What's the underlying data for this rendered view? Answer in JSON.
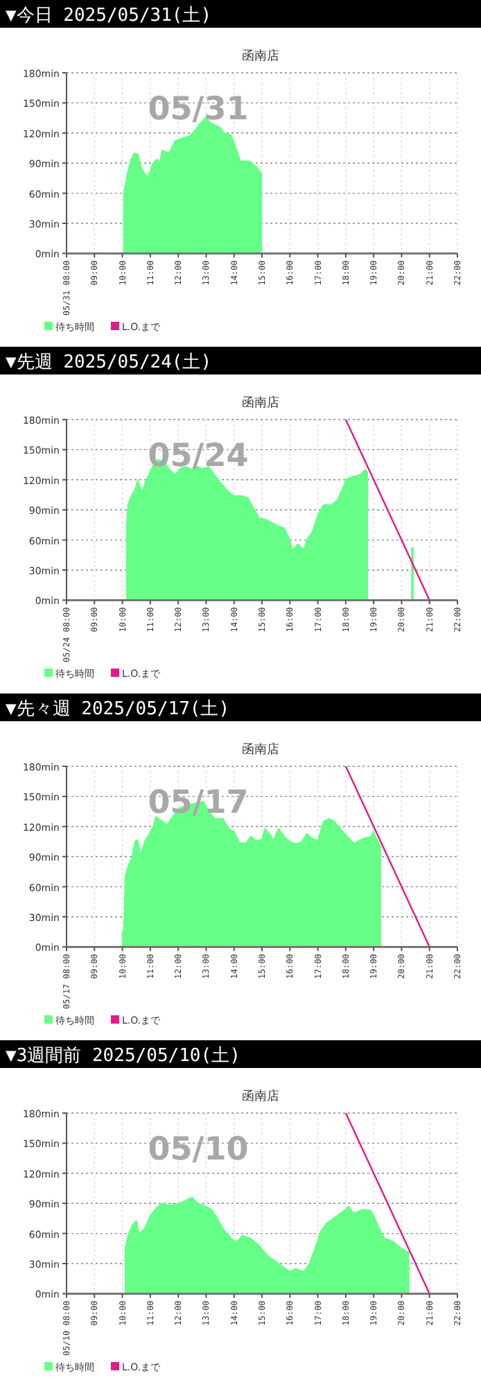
{
  "chart_data": [
    {
      "type": "area",
      "title": "▼今日 2025/05/31(土)",
      "subtitle": "函南店",
      "annotations": [
        "05/31"
      ],
      "xlim": [
        8,
        22
      ],
      "xticks": [
        {
          "value": 8,
          "label": "05/31 08:00"
        },
        {
          "value": 9,
          "label": "09:00"
        },
        {
          "value": 10,
          "label": "10:00"
        },
        {
          "value": 11,
          "label": "11:00"
        },
        {
          "value": 12,
          "label": "12:00"
        },
        {
          "value": 13,
          "label": "13:00"
        },
        {
          "value": 14,
          "label": "14:00"
        },
        {
          "value": 15,
          "label": "15:00"
        },
        {
          "value": 16,
          "label": "16:00"
        },
        {
          "value": 17,
          "label": "17:00"
        },
        {
          "value": 18,
          "label": "18:00"
        },
        {
          "value": 19,
          "label": "19:00"
        },
        {
          "value": 20,
          "label": "20:00"
        },
        {
          "value": 21,
          "label": "21:00"
        },
        {
          "value": 22,
          "label": "22:00"
        }
      ],
      "ylim": [
        0,
        180
      ],
      "yticks": [
        {
          "value": 0,
          "label": "0min"
        },
        {
          "value": 30,
          "label": "30min"
        },
        {
          "value": 60,
          "label": "60min"
        },
        {
          "value": 90,
          "label": "90min"
        },
        {
          "value": 120,
          "label": "120min"
        },
        {
          "value": 150,
          "label": "150min"
        },
        {
          "value": 180,
          "label": "180min"
        }
      ],
      "grid": true,
      "legend": "bottom left",
      "series": [
        {
          "name": "待ち時間",
          "type": "area",
          "color": "#66ff88",
          "x": [
            10.05,
            10.18,
            10.3,
            10.43,
            10.56,
            10.68,
            10.84,
            10.93,
            11.09,
            11.26,
            11.34,
            11.42,
            11.67,
            11.88,
            12.25,
            12.41,
            12.58,
            12.74,
            12.99,
            13.16,
            13.32,
            13.49,
            13.65,
            13.9,
            14.07,
            14.23,
            14.56,
            14.81,
            14.98
          ],
          "values": [
            60,
            80,
            93,
            100,
            99,
            85,
            78,
            77,
            90,
            94,
            90,
            103,
            100,
            112,
            116,
            117,
            122,
            128,
            136,
            130,
            128,
            126,
            120,
            118,
            105,
            92,
            92,
            86,
            80
          ]
        },
        {
          "name": "L.O.まで",
          "type": "line",
          "color": "#e8178a"
        }
      ]
    },
    {
      "type": "area",
      "title": "▼先週 2025/05/24(土)",
      "subtitle": "函南店",
      "annotations": [
        "05/24"
      ],
      "xlim": [
        8,
        22
      ],
      "xticks": [
        {
          "value": 8,
          "label": "05/24 08:00"
        },
        {
          "value": 9,
          "label": "09:00"
        },
        {
          "value": 10,
          "label": "10:00"
        },
        {
          "value": 11,
          "label": "11:00"
        },
        {
          "value": 12,
          "label": "12:00"
        },
        {
          "value": 13,
          "label": "13:00"
        },
        {
          "value": 14,
          "label": "14:00"
        },
        {
          "value": 15,
          "label": "15:00"
        },
        {
          "value": 16,
          "label": "16:00"
        },
        {
          "value": 17,
          "label": "17:00"
        },
        {
          "value": 18,
          "label": "18:00"
        },
        {
          "value": 19,
          "label": "19:00"
        },
        {
          "value": 20,
          "label": "20:00"
        },
        {
          "value": 21,
          "label": "21:00"
        },
        {
          "value": 22,
          "label": "22:00"
        }
      ],
      "ylim": [
        0,
        180
      ],
      "yticks": [
        {
          "value": 0,
          "label": "0min"
        },
        {
          "value": 30,
          "label": "30min"
        },
        {
          "value": 60,
          "label": "60min"
        },
        {
          "value": 90,
          "label": "90min"
        },
        {
          "value": 120,
          "label": "120min"
        },
        {
          "value": 150,
          "label": "150min"
        },
        {
          "value": 180,
          "label": "180min"
        }
      ],
      "grid": true,
      "legend": "bottom left",
      "series": [
        {
          "name": "待ち時間",
          "type": "area",
          "color": "#66ff88",
          "x": [
            10.15,
            10.2,
            10.3,
            10.45,
            10.55,
            10.7,
            10.85,
            11.0,
            11.15,
            11.3,
            11.5,
            11.7,
            11.9,
            12.1,
            12.3,
            12.5,
            12.7,
            12.9,
            13.1,
            13.3,
            13.5,
            13.8,
            14.0,
            14.3,
            14.5,
            14.7,
            14.9,
            15.2,
            15.5,
            15.8,
            16.0,
            16.1,
            16.3,
            16.5,
            16.6,
            16.8,
            17.0,
            17.2,
            17.5,
            17.7,
            17.9,
            18.0,
            18.2,
            18.5,
            18.7,
            18.78
          ],
          "values": [
            75,
            95,
            103,
            110,
            120,
            108,
            120,
            128,
            138,
            140,
            138,
            130,
            125,
            132,
            133,
            130,
            133,
            131,
            133,
            125,
            118,
            108,
            104,
            104,
            102,
            92,
            82,
            80,
            75,
            72,
            60,
            50,
            56,
            50,
            60,
            68,
            85,
            95,
            95,
            100,
            112,
            120,
            123,
            125,
            130,
            128
          ]
        },
        {
          "type": "area",
          "color": "#66ff88",
          "x": [
            20.36,
            20.42
          ],
          "values": [
            52,
            52
          ]
        },
        {
          "name": "L.O.まで",
          "type": "line",
          "color": "#e8178a",
          "x": [
            18,
            21
          ],
          "values": [
            180,
            0
          ]
        }
      ]
    },
    {
      "type": "area",
      "title": "▼先々週 2025/05/17(土)",
      "subtitle": "函南店",
      "annotations": [
        "05/17"
      ],
      "xlim": [
        8,
        22
      ],
      "xticks": [
        {
          "value": 8,
          "label": "05/17 08:00"
        },
        {
          "value": 9,
          "label": "09:00"
        },
        {
          "value": 10,
          "label": "10:00"
        },
        {
          "value": 11,
          "label": "11:00"
        },
        {
          "value": 12,
          "label": "12:00"
        },
        {
          "value": 13,
          "label": "13:00"
        },
        {
          "value": 14,
          "label": "14:00"
        },
        {
          "value": 15,
          "label": "15:00"
        },
        {
          "value": 16,
          "label": "16:00"
        },
        {
          "value": 17,
          "label": "17:00"
        },
        {
          "value": 18,
          "label": "18:00"
        },
        {
          "value": 19,
          "label": "19:00"
        },
        {
          "value": 20,
          "label": "20:00"
        },
        {
          "value": 21,
          "label": "21:00"
        },
        {
          "value": 22,
          "label": "22:00"
        }
      ],
      "ylim": [
        0,
        180
      ],
      "yticks": [
        {
          "value": 0,
          "label": "0min"
        },
        {
          "value": 30,
          "label": "30min"
        },
        {
          "value": 60,
          "label": "60min"
        },
        {
          "value": 90,
          "label": "90min"
        },
        {
          "value": 120,
          "label": "120min"
        },
        {
          "value": 150,
          "label": "150min"
        },
        {
          "value": 180,
          "label": "180min"
        }
      ],
      "grid": true,
      "legend": "bottom left",
      "series": [
        {
          "name": "待ち時間",
          "type": "area",
          "color": "#66ff88",
          "x": [
            10.0,
            10.05,
            10.1,
            10.2,
            10.35,
            10.45,
            10.55,
            10.65,
            10.8,
            10.95,
            11.1,
            11.2,
            11.4,
            11.6,
            11.8,
            12.0,
            12.2,
            12.4,
            12.6,
            12.9,
            13.1,
            13.3,
            13.6,
            13.8,
            14.0,
            14.2,
            14.4,
            14.6,
            14.8,
            15.0,
            15.1,
            15.3,
            15.4,
            15.6,
            15.8,
            16.0,
            16.2,
            16.4,
            16.6,
            16.8,
            17.0,
            17.2,
            17.4,
            17.6,
            17.8,
            18.0,
            18.3,
            18.6,
            18.9,
            19.0,
            19.1,
            19.25
          ],
          "values": [
            15,
            17,
            70,
            80,
            90,
            105,
            107,
            92,
            105,
            112,
            120,
            130,
            126,
            122,
            130,
            138,
            140,
            142,
            143,
            145,
            135,
            128,
            128,
            118,
            115,
            104,
            103,
            110,
            106,
            107,
            118,
            112,
            106,
            118,
            110,
            105,
            103,
            104,
            113,
            108,
            106,
            125,
            128,
            125,
            118,
            112,
            103,
            108,
            110,
            115,
            108,
            100
          ]
        },
        {
          "name": "L.O.まで",
          "type": "line",
          "color": "#e8178a",
          "x": [
            18,
            21
          ],
          "values": [
            180,
            0
          ]
        }
      ]
    },
    {
      "type": "area",
      "title": "▼3週間前 2025/05/10(土)",
      "subtitle": "函南店",
      "annotations": [
        "05/10"
      ],
      "xlim": [
        8,
        22
      ],
      "xticks": [
        {
          "value": 8,
          "label": "05/10 08:00"
        },
        {
          "value": 9,
          "label": "09:00"
        },
        {
          "value": 10,
          "label": "10:00"
        },
        {
          "value": 11,
          "label": "11:00"
        },
        {
          "value": 12,
          "label": "12:00"
        },
        {
          "value": 13,
          "label": "13:00"
        },
        {
          "value": 14,
          "label": "14:00"
        },
        {
          "value": 15,
          "label": "15:00"
        },
        {
          "value": 16,
          "label": "16:00"
        },
        {
          "value": 17,
          "label": "17:00"
        },
        {
          "value": 18,
          "label": "18:00"
        },
        {
          "value": 19,
          "label": "19:00"
        },
        {
          "value": 20,
          "label": "20:00"
        },
        {
          "value": 21,
          "label": "21:00"
        },
        {
          "value": 22,
          "label": "22:00"
        }
      ],
      "ylim": [
        0,
        180
      ],
      "yticks": [
        {
          "value": 0,
          "label": "0min"
        },
        {
          "value": 30,
          "label": "30min"
        },
        {
          "value": 60,
          "label": "60min"
        },
        {
          "value": 90,
          "label": "90min"
        },
        {
          "value": 120,
          "label": "120min"
        },
        {
          "value": 150,
          "label": "150min"
        },
        {
          "value": 180,
          "label": "180min"
        }
      ],
      "grid": true,
      "legend": "bottom left",
      "series": [
        {
          "name": "待ち時間",
          "type": "area",
          "color": "#66ff88",
          "x": [
            10.1,
            10.2,
            10.35,
            10.5,
            10.6,
            10.8,
            11.0,
            11.2,
            11.4,
            11.7,
            12.0,
            12.2,
            12.5,
            12.7,
            12.9,
            13.2,
            13.4,
            13.6,
            13.9,
            14.1,
            14.3,
            14.6,
            14.9,
            15.2,
            15.5,
            15.8,
            16.0,
            16.2,
            16.5,
            16.7,
            16.9,
            17.1,
            17.3,
            17.6,
            17.9,
            18.1,
            18.3,
            18.6,
            18.9,
            19.0,
            19.2,
            19.4,
            19.7,
            20.0,
            20.2,
            20.26
          ],
          "values": [
            45,
            58,
            68,
            73,
            60,
            65,
            78,
            85,
            90,
            88,
            90,
            92,
            96,
            90,
            88,
            84,
            75,
            65,
            55,
            52,
            58,
            55,
            48,
            38,
            32,
            26,
            22,
            25,
            22,
            30,
            45,
            62,
            70,
            76,
            82,
            87,
            80,
            84,
            83,
            78,
            65,
            55,
            52,
            45,
            42,
            42
          ]
        },
        {
          "name": "L.O.まで",
          "type": "line",
          "color": "#e8178a",
          "x": [
            18,
            21
          ],
          "values": [
            180,
            0
          ]
        }
      ]
    }
  ]
}
